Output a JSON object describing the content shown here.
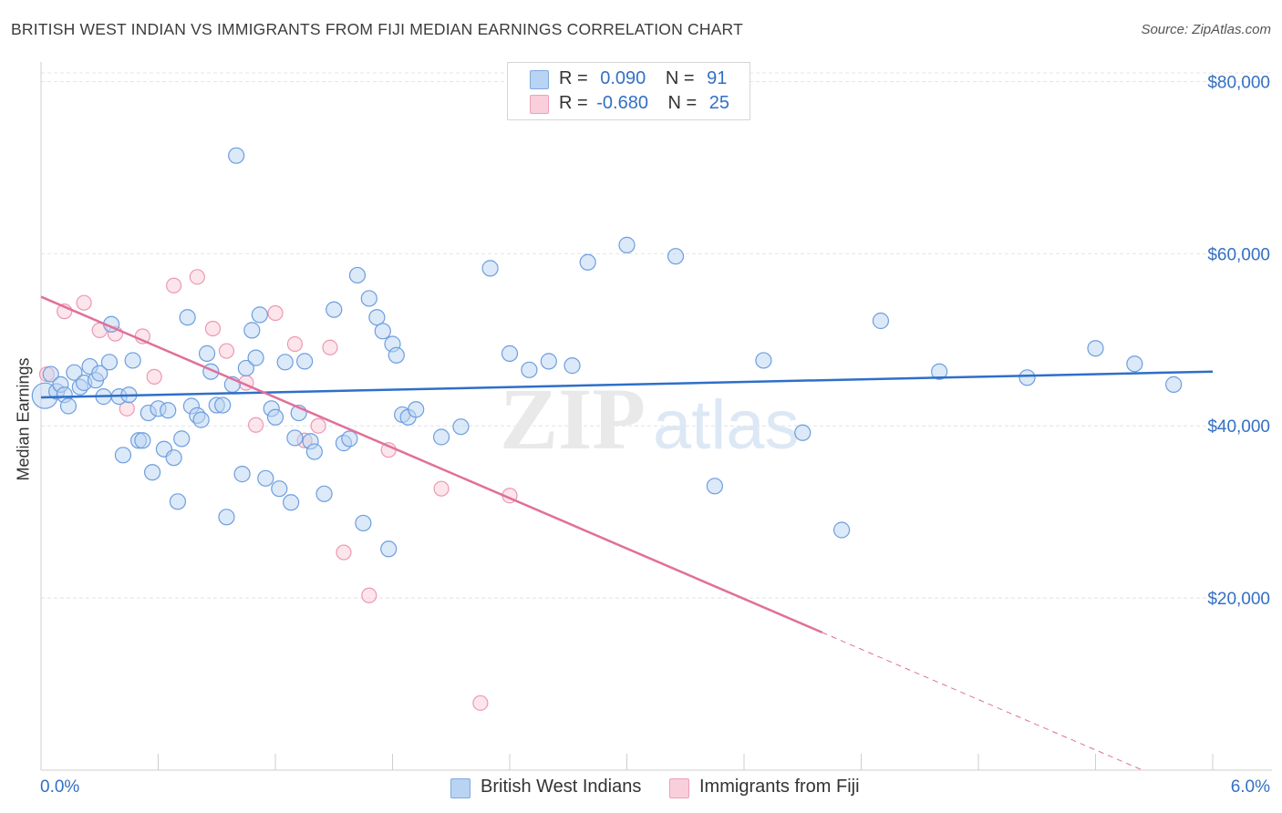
{
  "header": {
    "title": "BRITISH WEST INDIAN VS IMMIGRANTS FROM FIJI MEDIAN EARNINGS CORRELATION CHART",
    "source": "Source: ZipAtlas.com"
  },
  "legend": {
    "rows": [
      {
        "r_label": "R =",
        "r_value": "0.090",
        "n_label": "N =",
        "n_value": "91",
        "color": "#a8c8f0"
      },
      {
        "r_label": "R =",
        "r_value": "-0.680",
        "n_label": "N =",
        "n_value": "25",
        "color": "#f5b8c9"
      }
    ]
  },
  "bottom_legend": {
    "series1": "British West Indians",
    "series2": "Immigrants from Fiji"
  },
  "watermark": {
    "zip": "ZIP",
    "atlas": "atlas"
  },
  "colors": {
    "blue_fill": "#a8c8f0",
    "blue_line": "#2e6fc9",
    "pink_fill": "#f5b8c9",
    "pink_line": "#e0709a",
    "axis_label": "#3370c4",
    "grid": "#e6e6e6"
  },
  "chart_data": {
    "type": "scatter",
    "title": "BRITISH WEST INDIAN VS IMMIGRANTS FROM FIJI MEDIAN EARNINGS CORRELATION CHART",
    "xlabel": "",
    "ylabel": "Median Earnings",
    "xlim": [
      0.0,
      6.0
    ],
    "ylim": [
      0,
      81000
    ],
    "x_tick_labels": [
      "0.0%",
      "6.0%"
    ],
    "y_ticks": [
      20000,
      40000,
      60000,
      80000
    ],
    "y_tick_labels": [
      "$20,000",
      "$40,000",
      "$60,000",
      "$80,000"
    ],
    "grid": true,
    "legend_position": "top-center",
    "series": [
      {
        "name": "British West Indians",
        "color": "#a8c8f0",
        "trend": {
          "x0": 0.0,
          "y0": 43300,
          "x1": 6.0,
          "y1": 46300
        },
        "points": [
          [
            0.02,
            43500
          ],
          [
            0.05,
            46000
          ],
          [
            0.08,
            44000
          ],
          [
            0.1,
            44800
          ],
          [
            0.12,
            43600
          ],
          [
            0.14,
            42300
          ],
          [
            0.17,
            46200
          ],
          [
            0.2,
            44500
          ],
          [
            0.22,
            45000
          ],
          [
            0.25,
            46900
          ],
          [
            0.28,
            45300
          ],
          [
            0.3,
            46100
          ],
          [
            0.32,
            43400
          ],
          [
            0.35,
            47400
          ],
          [
            0.4,
            43400
          ],
          [
            0.42,
            36600
          ],
          [
            0.45,
            43600
          ],
          [
            0.47,
            47600
          ],
          [
            0.5,
            38300
          ],
          [
            0.52,
            38300
          ],
          [
            0.55,
            41500
          ],
          [
            0.57,
            34600
          ],
          [
            0.6,
            42000
          ],
          [
            0.63,
            37300
          ],
          [
            0.65,
            41800
          ],
          [
            0.68,
            36300
          ],
          [
            0.7,
            31200
          ],
          [
            0.72,
            38500
          ],
          [
            0.75,
            52600
          ],
          [
            0.77,
            42300
          ],
          [
            0.8,
            41200
          ],
          [
            0.82,
            40700
          ],
          [
            0.85,
            48400
          ],
          [
            0.87,
            46300
          ],
          [
            0.9,
            42400
          ],
          [
            0.93,
            42400
          ],
          [
            0.95,
            29400
          ],
          [
            0.98,
            44800
          ],
          [
            1.0,
            71400
          ],
          [
            1.03,
            34400
          ],
          [
            1.05,
            46700
          ],
          [
            1.08,
            51100
          ],
          [
            1.1,
            47900
          ],
          [
            1.12,
            52900
          ],
          [
            1.15,
            33900
          ],
          [
            1.18,
            42000
          ],
          [
            1.2,
            41000
          ],
          [
            1.22,
            32700
          ],
          [
            1.25,
            47400
          ],
          [
            1.28,
            31100
          ],
          [
            1.3,
            38600
          ],
          [
            1.32,
            41500
          ],
          [
            1.35,
            47500
          ],
          [
            1.38,
            38200
          ],
          [
            1.4,
            37000
          ],
          [
            1.45,
            32100
          ],
          [
            1.5,
            53500
          ],
          [
            1.55,
            38000
          ],
          [
            1.58,
            38500
          ],
          [
            1.62,
            57500
          ],
          [
            1.65,
            28700
          ],
          [
            1.68,
            54800
          ],
          [
            1.72,
            52600
          ],
          [
            1.75,
            51000
          ],
          [
            1.78,
            25700
          ],
          [
            1.8,
            49500
          ],
          [
            1.82,
            48200
          ],
          [
            1.85,
            41300
          ],
          [
            1.88,
            41000
          ],
          [
            1.92,
            41900
          ],
          [
            2.05,
            38700
          ],
          [
            2.15,
            39900
          ],
          [
            2.3,
            58300
          ],
          [
            2.4,
            48400
          ],
          [
            2.5,
            46500
          ],
          [
            2.6,
            47500
          ],
          [
            2.72,
            47000
          ],
          [
            2.8,
            59000
          ],
          [
            3.0,
            61000
          ],
          [
            3.25,
            59700
          ],
          [
            3.45,
            33000
          ],
          [
            3.7,
            47600
          ],
          [
            3.9,
            39200
          ],
          [
            4.1,
            27900
          ],
          [
            4.3,
            52200
          ],
          [
            4.6,
            46300
          ],
          [
            5.05,
            45600
          ],
          [
            5.4,
            49000
          ],
          [
            5.6,
            47200
          ],
          [
            5.8,
            44800
          ],
          [
            0.36,
            51800
          ]
        ]
      },
      {
        "name": "Immigrants from Fiji",
        "color": "#f5b8c9",
        "trend": {
          "x0": 0.0,
          "y0": 55000,
          "x1": 4.0,
          "y1": 16000,
          "dash_to_x": 6.0
        },
        "points": [
          [
            0.03,
            46000
          ],
          [
            0.12,
            53300
          ],
          [
            0.22,
            54300
          ],
          [
            0.3,
            51100
          ],
          [
            0.38,
            50700
          ],
          [
            0.44,
            42000
          ],
          [
            0.52,
            50400
          ],
          [
            0.58,
            45700
          ],
          [
            0.68,
            56300
          ],
          [
            0.8,
            57300
          ],
          [
            0.88,
            51300
          ],
          [
            0.95,
            48700
          ],
          [
            1.05,
            45000
          ],
          [
            1.1,
            40100
          ],
          [
            1.2,
            53100
          ],
          [
            1.3,
            49500
          ],
          [
            1.35,
            38300
          ],
          [
            1.42,
            40000
          ],
          [
            1.48,
            49100
          ],
          [
            1.55,
            25300
          ],
          [
            1.68,
            20300
          ],
          [
            1.78,
            37200
          ],
          [
            2.05,
            32700
          ],
          [
            2.25,
            7800
          ],
          [
            2.4,
            31900
          ]
        ]
      }
    ]
  }
}
